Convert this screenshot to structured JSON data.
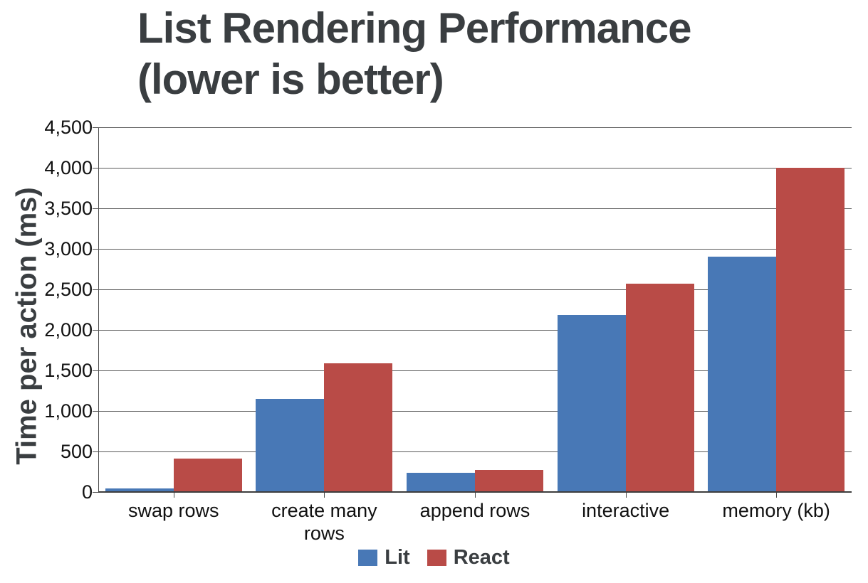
{
  "title_lines": [
    "List Rendering Performance",
    "(lower is better)"
  ],
  "colors": {
    "lit_blue": "#4878B6",
    "react_red": "#B94B47",
    "gridline": "#595959",
    "axis": "#3d3d3d",
    "title_text": "#3A3E41",
    "tick_text": "#111111"
  },
  "chart_data": {
    "type": "bar",
    "title": "List Rendering Performance (lower is better)",
    "categories": [
      "swap rows",
      "create many rows",
      "append rows",
      "interactive",
      "memory (kb)"
    ],
    "series": [
      {
        "name": "Lit",
        "color": "#4878B6",
        "values": [
          40,
          1150,
          240,
          2180,
          2900
        ]
      },
      {
        "name": "React",
        "color": "#B94B47",
        "values": [
          410,
          1590,
          270,
          2570,
          4000
        ]
      }
    ],
    "xlabel": "",
    "ylabel": "Time per action (ms)",
    "ylim": [
      0,
      4500
    ],
    "y_tick_step": 500,
    "y_tick_labels": [
      "0",
      "500",
      "1,000",
      "1,500",
      "2,000",
      "2,500",
      "3,000",
      "3,500",
      "4,000",
      "4,500"
    ],
    "grid": true,
    "legend_position": "bottom"
  }
}
